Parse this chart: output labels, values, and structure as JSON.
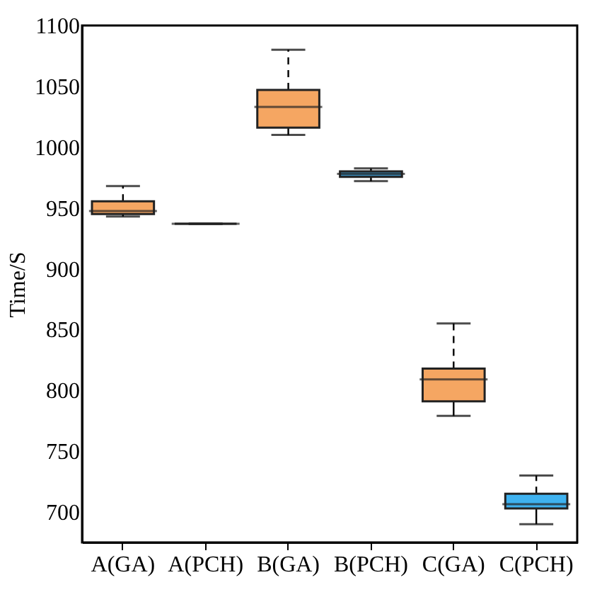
{
  "chart_data": {
    "type": "box",
    "ylabel": "Time/S",
    "categories": [
      "A(GA)",
      "A(PCH)",
      "B(GA)",
      "B(PCH)",
      "C(GA)",
      "C(PCH)"
    ],
    "boxes": [
      {
        "low": 943,
        "q1": 945,
        "median": 947.5,
        "q3": 955.5,
        "high": 968
      },
      {
        "low": 937,
        "q1": 937,
        "median": 937,
        "q3": 937,
        "high": 937
      },
      {
        "low": 1010,
        "q1": 1016,
        "median": 1033,
        "q3": 1047,
        "high": 1080
      },
      {
        "low": 972,
        "q1": 975.5,
        "median": 978,
        "q3": 980,
        "high": 982.5
      },
      {
        "low": 779,
        "q1": 791,
        "median": 809,
        "q3": 818,
        "high": 855
      },
      {
        "low": 690,
        "q1": 703,
        "median": 706.5,
        "q3": 715,
        "high": 730
      }
    ],
    "colors": [
      "#f5a662",
      "#222222",
      "#f5a662",
      "#3a8fc0",
      "#f5a662",
      "#3fb2f0"
    ],
    "ylim": [
      675,
      1100
    ],
    "yticks": [
      700,
      750,
      800,
      850,
      900,
      950,
      1000,
      1050,
      1100
    ],
    "grid": false
  }
}
